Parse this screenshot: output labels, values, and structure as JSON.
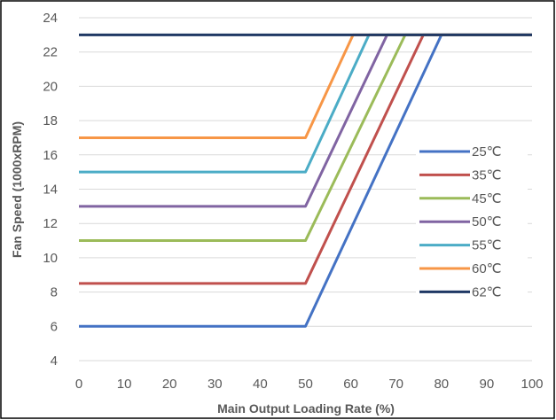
{
  "chart_data": {
    "type": "line",
    "title": "",
    "xlabel": "Main Output Loading Rate (%)",
    "ylabel": "Fan Speed (1000xRPM)",
    "xlim": [
      0,
      100
    ],
    "ylim": [
      4,
      24
    ],
    "x_ticks": [
      0,
      10,
      20,
      30,
      40,
      50,
      60,
      70,
      80,
      90,
      100
    ],
    "y_ticks": [
      4,
      6,
      8,
      10,
      12,
      14,
      16,
      18,
      20,
      22,
      24
    ],
    "grid": "horizontal major",
    "legend_position": "right",
    "series": [
      {
        "name": "25℃",
        "color": "#4472C4",
        "x": [
          0,
          50,
          80,
          100
        ],
        "y": [
          6,
          6,
          23,
          23
        ]
      },
      {
        "name": "35℃",
        "color": "#C0504D",
        "x": [
          0,
          50,
          76,
          100
        ],
        "y": [
          8.5,
          8.5,
          23,
          23
        ]
      },
      {
        "name": "45℃",
        "color": "#9BBB59",
        "x": [
          0,
          50,
          72,
          100
        ],
        "y": [
          11,
          11,
          23,
          23
        ]
      },
      {
        "name": "50℃",
        "color": "#8064A2",
        "x": [
          0,
          50,
          68,
          100
        ],
        "y": [
          13,
          13,
          23,
          23
        ]
      },
      {
        "name": "55℃",
        "color": "#4BACC6",
        "x": [
          0,
          50,
          64,
          100
        ],
        "y": [
          15,
          15,
          23,
          23
        ]
      },
      {
        "name": "60℃",
        "color": "#F79646",
        "x": [
          0,
          50,
          60.5,
          100
        ],
        "y": [
          17,
          17,
          23,
          23
        ]
      },
      {
        "name": "62℃",
        "color": "#1F3864",
        "x": [
          0,
          100
        ],
        "y": [
          23,
          23
        ]
      }
    ]
  }
}
